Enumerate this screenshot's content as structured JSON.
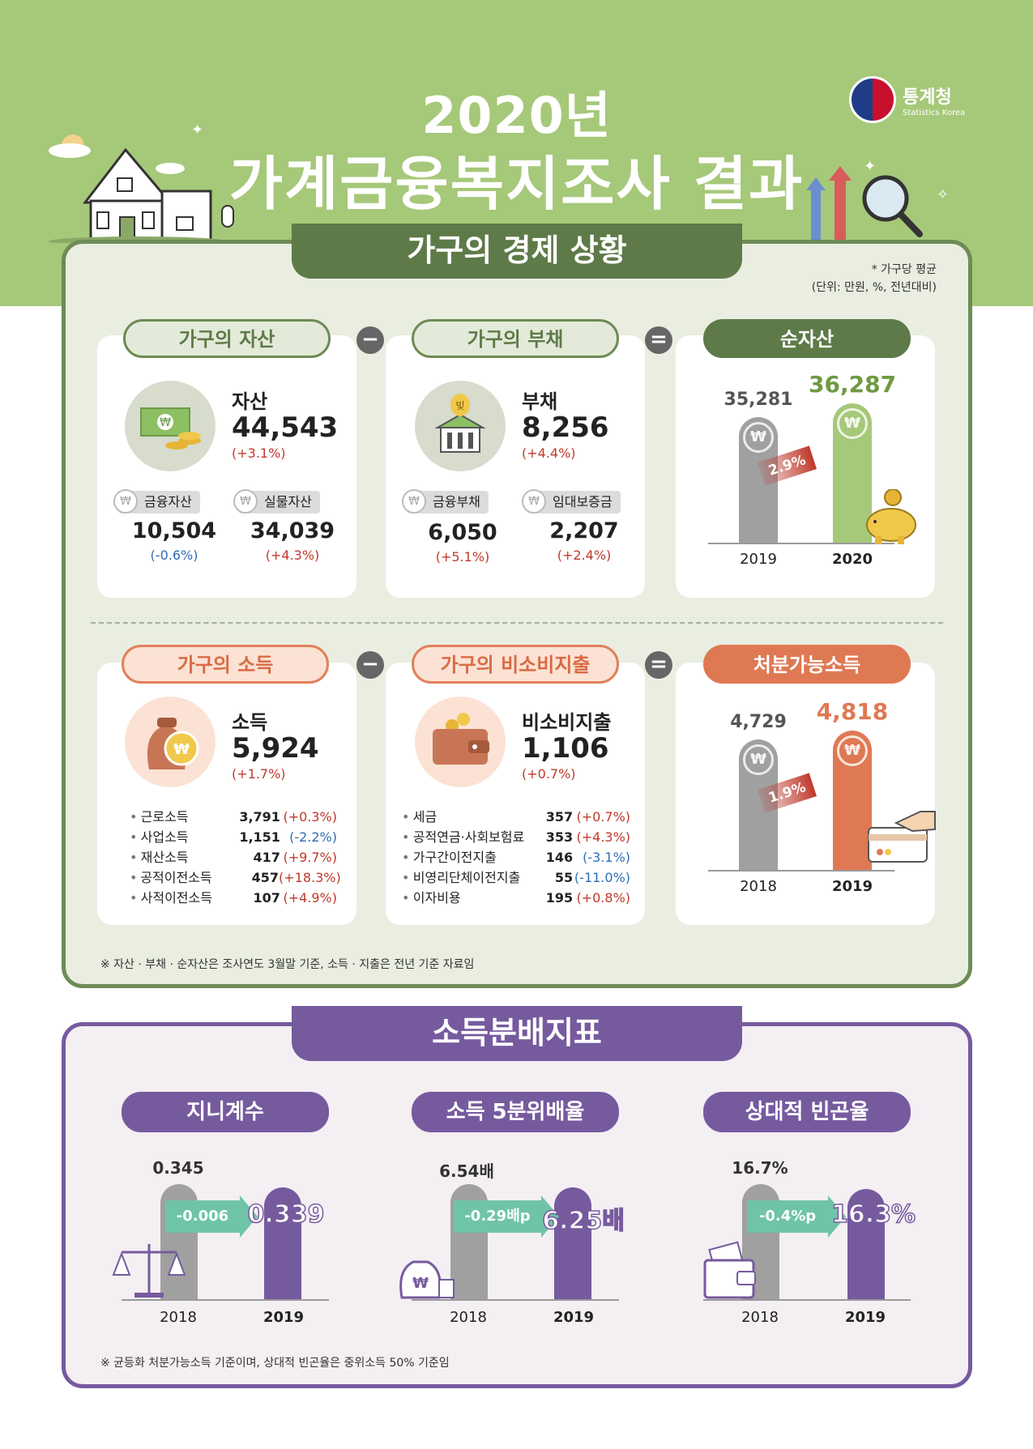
{
  "header": {
    "title_year": "2020년",
    "title_main": "가계금융복지조사 결과",
    "logo_ko": "통계청",
    "logo_en": "Statistics Korea"
  },
  "section1": {
    "ribbon": "가구의 경제 상황",
    "note_line1": "* 가구당 평균",
    "note_line2": "(단위: 만원, %, 전년대비)",
    "op_minus": "−",
    "op_equals": "=",
    "assets": {
      "pill": "가구의 자산",
      "label": "자산",
      "value": "44,543",
      "change": "(+3.1%)",
      "sub": [
        {
          "tag": "금융자산",
          "value": "10,504",
          "change": "(-0.6%)"
        },
        {
          "tag": "실물자산",
          "value": "34,039",
          "change": "(+4.3%)"
        }
      ]
    },
    "debt": {
      "pill": "가구의 부채",
      "label": "부채",
      "value": "8,256",
      "change": "(+4.4%)",
      "icon_text": "빚",
      "sub": [
        {
          "tag": "금융부채",
          "value": "6,050",
          "change": "(+5.1%)"
        },
        {
          "tag": "임대보증금",
          "value": "2,207",
          "change": "(+2.4%)"
        }
      ]
    },
    "net_assets": {
      "pill": "순자산",
      "bars": [
        {
          "year": "2019",
          "value": 35281,
          "label": "35,281"
        },
        {
          "year": "2020",
          "value": 36287,
          "label": "36,287"
        }
      ],
      "growth": "2.9%"
    },
    "income": {
      "pill": "가구의 소득",
      "label": "소득",
      "value": "5,924",
      "change": "(+1.7%)",
      "items": [
        {
          "name": "근로소득",
          "value": "3,791",
          "change": "(+0.3%)"
        },
        {
          "name": "사업소득",
          "value": "1,151",
          "change": "(-2.2%)"
        },
        {
          "name": "재산소득",
          "value": "417",
          "change": "(+9.7%)"
        },
        {
          "name": "공적이전소득",
          "value": "457",
          "change": "(+18.3%)"
        },
        {
          "name": "사적이전소득",
          "value": "107",
          "change": "(+4.9%)"
        }
      ]
    },
    "nonconsumption": {
      "pill": "가구의 비소비지출",
      "label": "비소비지출",
      "value": "1,106",
      "change": "(+0.7%)",
      "items": [
        {
          "name": "세금",
          "value": "357",
          "change": "(+0.7%)"
        },
        {
          "name": "공적연금·사회보험료",
          "value": "353",
          "change": "(+4.3%)"
        },
        {
          "name": "가구간이전지출",
          "value": "146",
          "change": "(-3.1%)"
        },
        {
          "name": "비영리단체이전지출",
          "value": "55",
          "change": "(-11.0%)"
        },
        {
          "name": "이자비용",
          "value": "195",
          "change": "(+0.8%)"
        }
      ]
    },
    "disposable": {
      "pill": "처분가능소득",
      "bars": [
        {
          "year": "2018",
          "value": 4729,
          "label": "4,729"
        },
        {
          "year": "2019",
          "value": 4818,
          "label": "4,818"
        }
      ],
      "growth": "1.9%"
    },
    "footnote": "※ 자산 · 부채 · 순자산은 조사연도 3월말 기준, 소득 · 지출은 전년 기준 자료임"
  },
  "section2": {
    "ribbon": "소득분배지표",
    "gini": {
      "pill": "지니계수",
      "prev_year": "2018",
      "prev": "0.345",
      "cur_year": "2019",
      "cur": "0.339",
      "change": "-0.006"
    },
    "quintile": {
      "pill": "소득 5분위배율",
      "prev_year": "2018",
      "prev": "6.54배",
      "cur_year": "2019",
      "cur": "6.25배",
      "change": "-0.29배p"
    },
    "poverty": {
      "pill": "상대적 빈곤율",
      "prev_year": "2018",
      "prev": "16.7%",
      "cur_year": "2019",
      "cur": "16.3%",
      "change": "-0.4%p"
    },
    "footnote": "※ 균등화 처분가능소득 기준이며, 상대적 빈곤율은 중위소득 50% 기준임"
  },
  "colors": {
    "green": "#5d7a48",
    "light_green": "#a6c879",
    "orange": "#df7954",
    "purple": "#765a9e",
    "teal": "#6fc4a8"
  },
  "icons": [
    "house-icon",
    "magnifier-icon",
    "money-icon",
    "bank-icon",
    "piggy-bank-icon",
    "money-bag-icon",
    "wallet-icon",
    "card-icon",
    "scale-icon"
  ]
}
